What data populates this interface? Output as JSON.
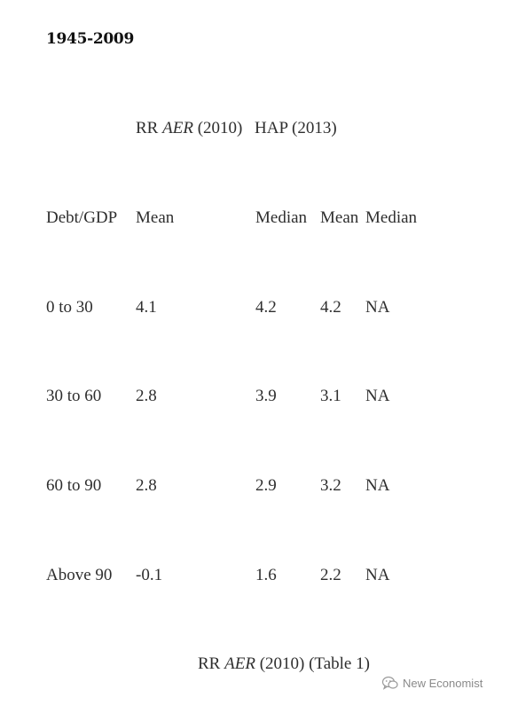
{
  "period": "1945-2009",
  "sources": {
    "rr_prefix": "RR ",
    "rr_journal": "AER",
    "rr_year": " (2010)",
    "hap": "HAP (2013)"
  },
  "columns": {
    "debt_gdp": "Debt/GDP",
    "rr_mean": "Mean",
    "rr_median": "Median",
    "hap_mean": "Mean",
    "hap_median": "Median"
  },
  "rows": [
    {
      "range": "0 to 30",
      "rr_mean": "4.1",
      "rr_median": "4.2",
      "hap_mean": "4.2",
      "hap_median": "NA"
    },
    {
      "range": "30 to 60",
      "rr_mean": "2.8",
      "rr_median": "3.9",
      "hap_mean": "3.1",
      "hap_median": "NA"
    },
    {
      "range": "60 to 90",
      "rr_mean": "2.8",
      "rr_median": "2.9",
      "hap_mean": "3.2",
      "hap_median": "NA"
    },
    {
      "range": "Above 90",
      "rr_mean": "-0.1",
      "rr_median": "1.6",
      "hap_mean": "2.2",
      "hap_median": "NA"
    }
  ],
  "caption": {
    "prefix": "RR ",
    "journal": "AER",
    "suffix": " (2010) (Table 1)"
  },
  "watermark": {
    "text": "New Economist",
    "icon": "wechat-icon"
  }
}
